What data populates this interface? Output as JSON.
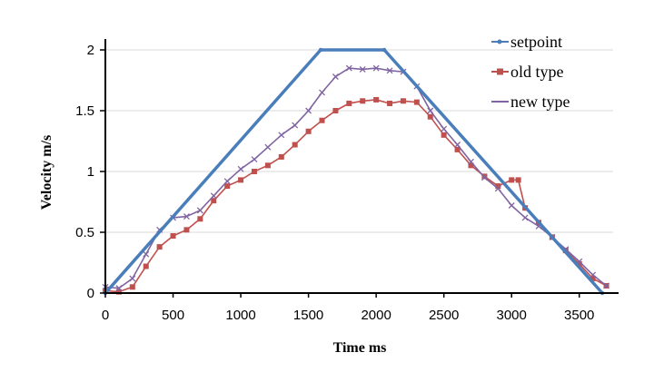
{
  "chart_data": {
    "type": "line",
    "title": "",
    "xlabel": "Time ms",
    "ylabel": "Velocity m/s",
    "xlim": [
      0,
      3750
    ],
    "ylim": [
      0,
      2
    ],
    "x_ticks": [
      "0",
      "500",
      "1000",
      "1500",
      "2000",
      "2500",
      "3000",
      "3500"
    ],
    "y_ticks": [
      "0",
      "0.5",
      "1",
      "1.5",
      "2"
    ],
    "grid": "horizontal",
    "legend_position": "top-right",
    "series": [
      {
        "name": "setpoint",
        "color": "#4a7ebb",
        "marker": "small-dot",
        "x": [
          0,
          1590,
          2060,
          3670
        ],
        "y": [
          0,
          2,
          2,
          0
        ]
      },
      {
        "name": "old type",
        "color": "#c0504d",
        "marker": "square",
        "x": [
          0,
          100,
          200,
          300,
          400,
          500,
          600,
          700,
          800,
          900,
          1000,
          1100,
          1200,
          1300,
          1400,
          1500,
          1600,
          1700,
          1800,
          1900,
          2000,
          2100,
          2200,
          2300,
          2400,
          2500,
          2600,
          2700,
          2800,
          2900,
          3000,
          3050,
          3100,
          3200,
          3300,
          3400,
          3500,
          3600,
          3700
        ],
        "y": [
          0.02,
          0.01,
          0.05,
          0.22,
          0.38,
          0.47,
          0.52,
          0.61,
          0.76,
          0.88,
          0.93,
          1.0,
          1.05,
          1.12,
          1.22,
          1.33,
          1.42,
          1.5,
          1.56,
          1.58,
          1.59,
          1.56,
          1.58,
          1.57,
          1.45,
          1.3,
          1.18,
          1.05,
          0.96,
          0.88,
          0.93,
          0.93,
          0.7,
          0.58,
          0.46,
          0.35,
          0.24,
          0.12,
          0.06
        ]
      },
      {
        "name": "new type",
        "color": "#8064a2",
        "marker": "cross",
        "x": [
          0,
          100,
          200,
          300,
          400,
          500,
          600,
          700,
          800,
          900,
          1000,
          1100,
          1200,
          1300,
          1400,
          1500,
          1600,
          1700,
          1800,
          1900,
          2000,
          2100,
          2200,
          2300,
          2400,
          2500,
          2600,
          2700,
          2800,
          2900,
          3000,
          3100,
          3200,
          3300,
          3400,
          3500,
          3600,
          3700
        ],
        "y": [
          0.05,
          0.04,
          0.12,
          0.32,
          0.52,
          0.62,
          0.63,
          0.68,
          0.8,
          0.92,
          1.02,
          1.1,
          1.2,
          1.3,
          1.38,
          1.5,
          1.65,
          1.78,
          1.85,
          1.84,
          1.85,
          1.83,
          1.82,
          1.7,
          1.5,
          1.35,
          1.22,
          1.08,
          0.95,
          0.86,
          0.72,
          0.62,
          0.55,
          0.46,
          0.36,
          0.26,
          0.15,
          0.06
        ]
      }
    ]
  }
}
